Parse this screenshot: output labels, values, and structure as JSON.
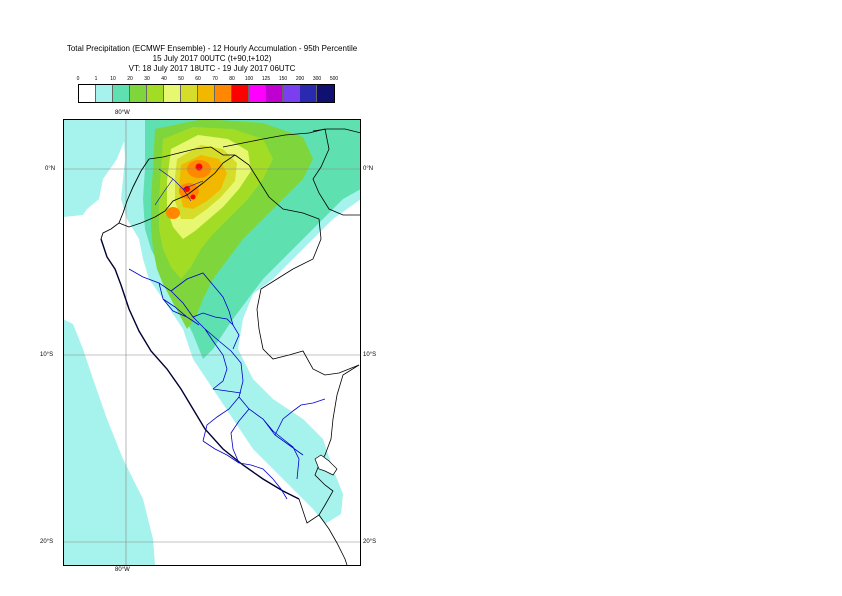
{
  "title": {
    "line1": "Total Precipitation (ECMWF Ensemble) - 12 Hourly Accumulation - 95th Percentile",
    "line2": "15 July 2017 00UTC (t+90,t+102)",
    "line3": "VT: 18 July 2017 18UTC - 19 July 2017 06UTC"
  },
  "legend": {
    "labels": [
      "0",
      "1",
      "10",
      "20",
      "30",
      "40",
      "50",
      "60",
      "70",
      "80",
      "100",
      "125",
      "150",
      "200",
      "300",
      "500"
    ],
    "colors": [
      "#ffffff",
      "#a6f2ec",
      "#5fe0b0",
      "#7ed63c",
      "#a3dc24",
      "#e7f870",
      "#d6dc2a",
      "#f2b800",
      "#ff8800",
      "#ff0000",
      "#ff00ff",
      "#c000d0",
      "#7a40f0",
      "#2a2ab0",
      "#101070"
    ]
  },
  "axes": {
    "lon_top": "80°W",
    "lon_bottom": "80°W",
    "lat_0_left": "0°N",
    "lat_0_right": "0°N",
    "lat_10_left": "10°S",
    "lat_10_right": "10°S",
    "lat_20_left": "20°S",
    "lat_20_right": "20°S"
  },
  "map": {
    "gridlines": true,
    "colors": {
      "light_cyan": "#a6f2ec",
      "teal": "#5fe0b0",
      "green": "#7ed63c",
      "yellow_green": "#a3dc24",
      "pale_yellow": "#e7f870",
      "olive_yellow": "#d6dc2a",
      "amber": "#f2b800",
      "orange": "#ff8800",
      "red": "#ff0000",
      "country_border": "#000000",
      "region_border": "#0000cc",
      "grid": "#888888"
    }
  }
}
